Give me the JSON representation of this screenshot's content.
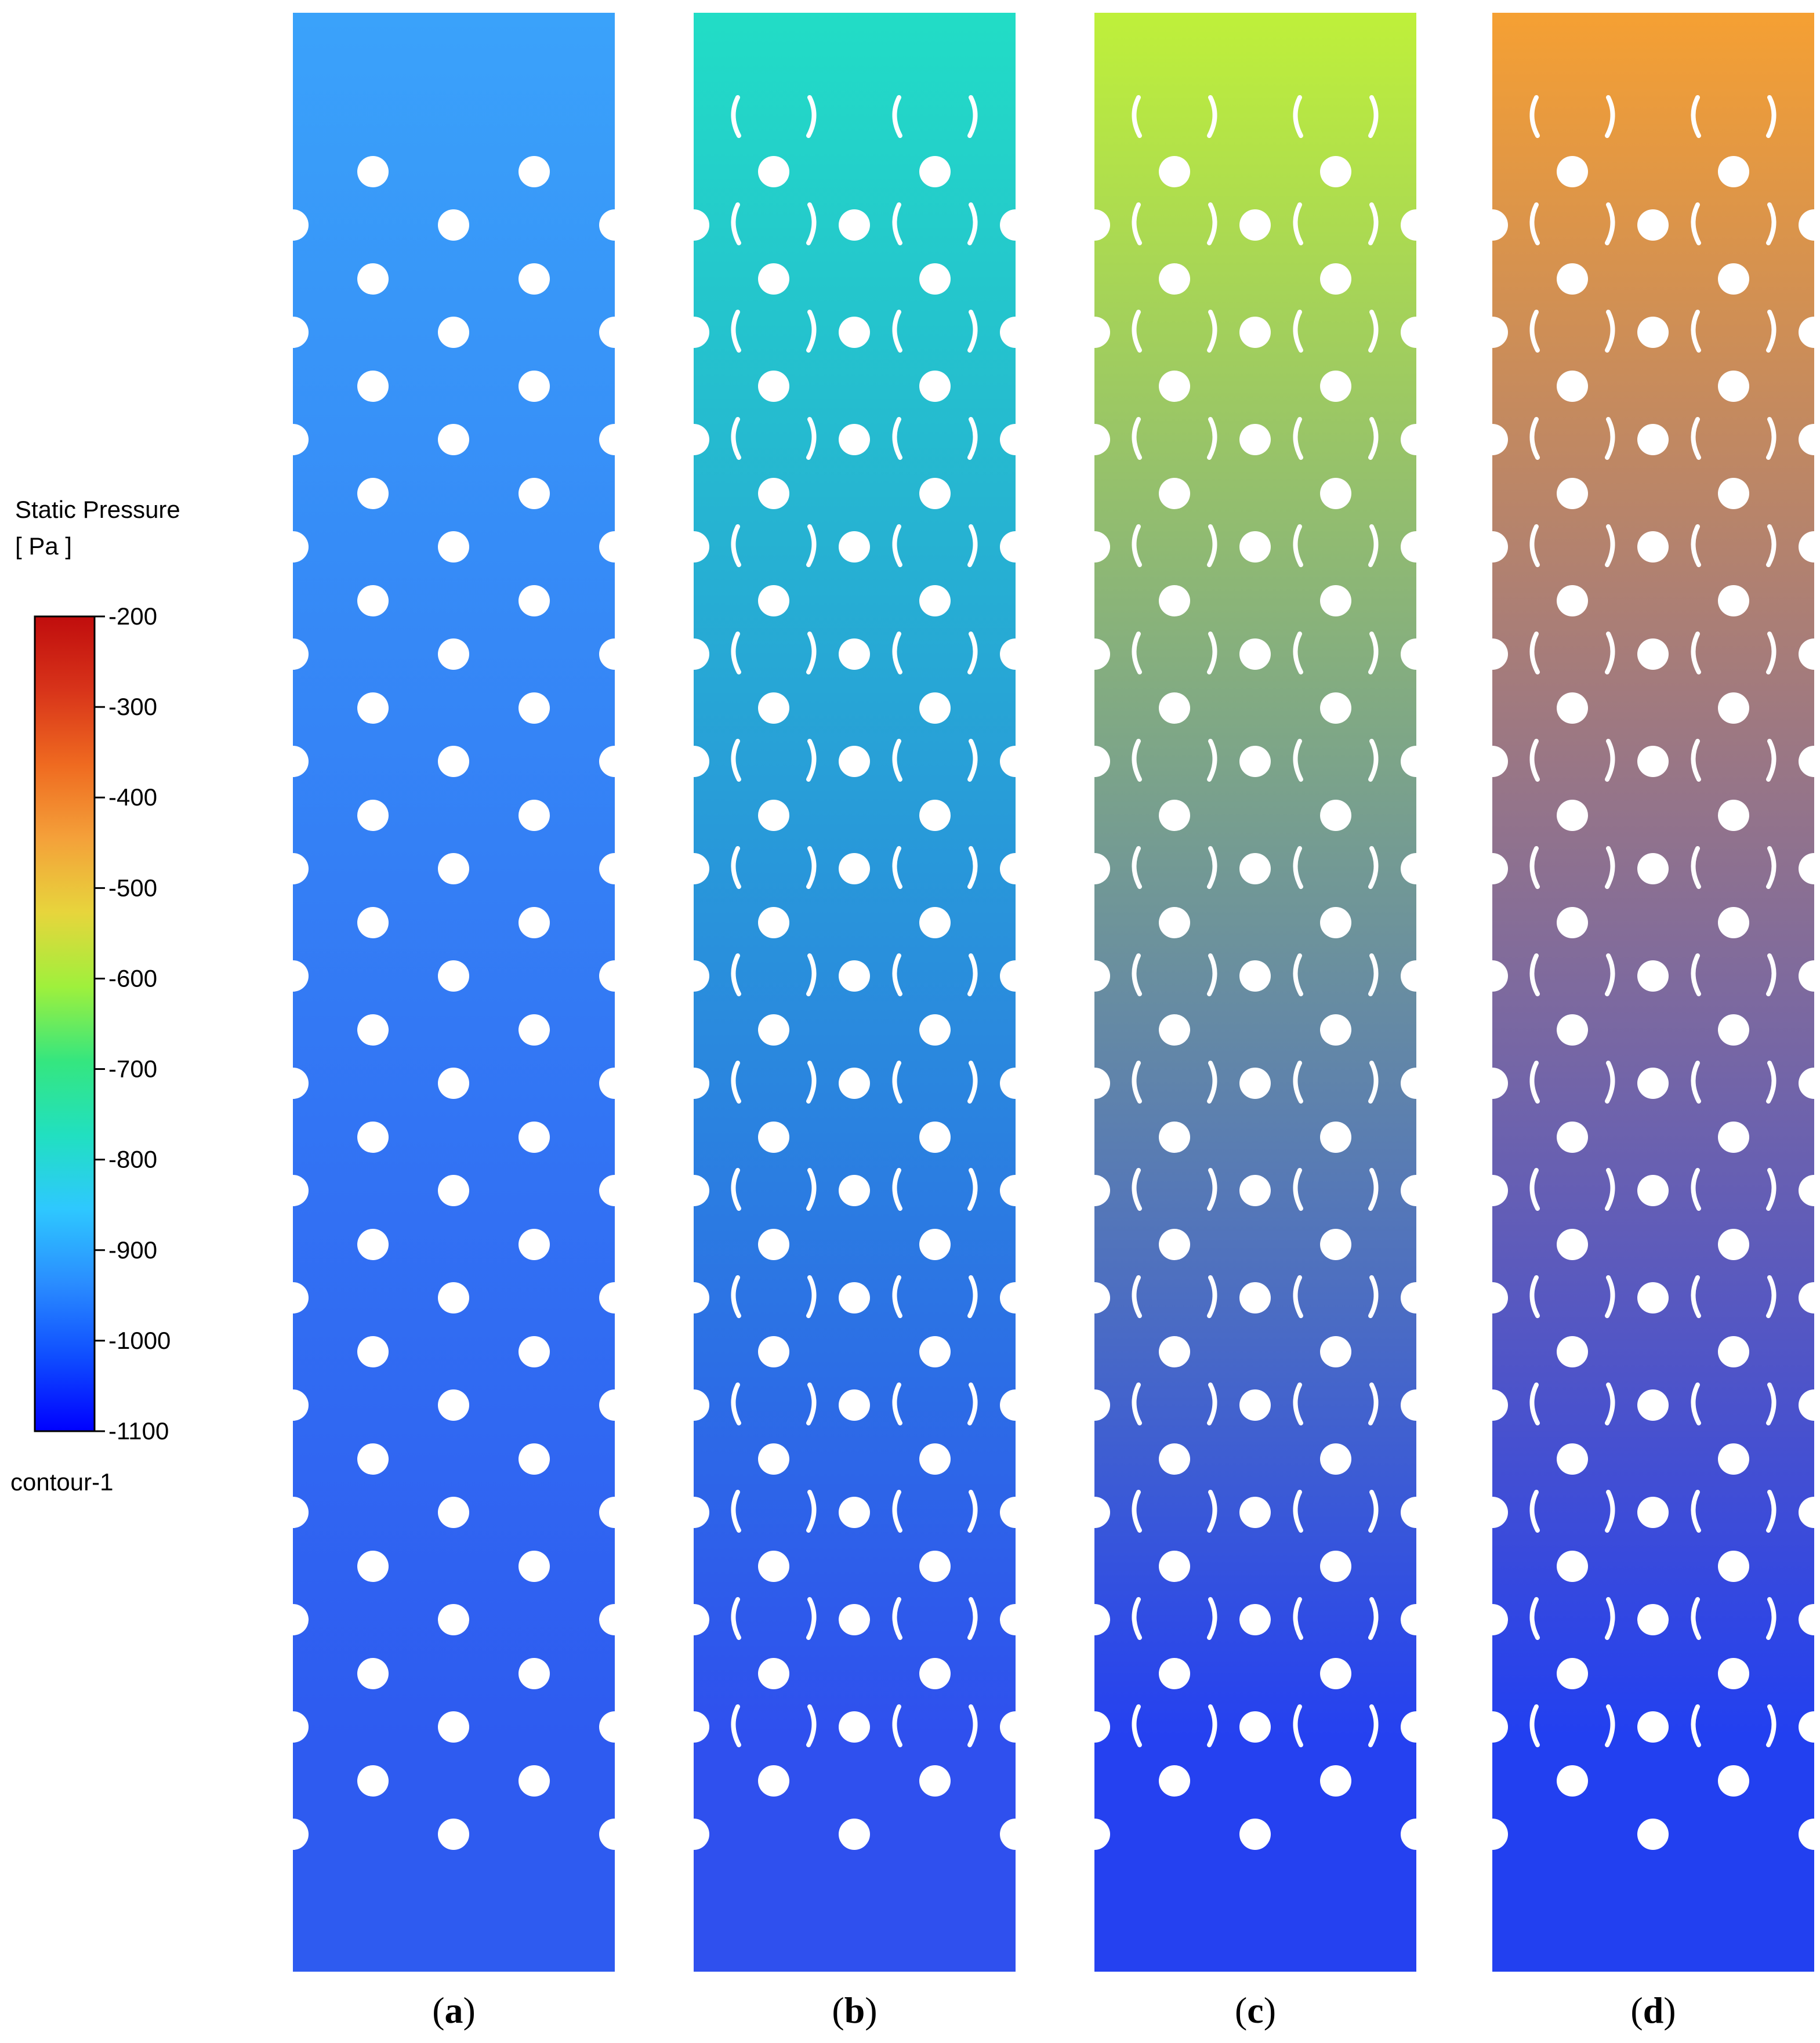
{
  "legend": {
    "title": "Static Pressure",
    "unit": "[ Pa ]",
    "ticks": [
      "-200",
      "-300",
      "-400",
      "-500",
      "-600",
      "-700",
      "-800",
      "-900",
      "-1000",
      "-1100"
    ],
    "tick_values": [
      -200,
      -300,
      -400,
      -500,
      -600,
      -700,
      -800,
      -900,
      -1000,
      -1100
    ],
    "range": [
      -1100,
      -200
    ],
    "contour_name": "contour-1",
    "colormap": [
      "#0000ff",
      "#0f4dff",
      "#2a8dff",
      "#2ec8ff",
      "#21e0c0",
      "#35e67f",
      "#9ff03c",
      "#e7d53c",
      "#f4a13a",
      "#ef6a20",
      "#d8341a",
      "#c00d0d"
    ]
  },
  "panels": [
    {
      "label": "a",
      "top_color": "#3aa2fa",
      "bottom_color": "#2e5bf0",
      "vanes": false
    },
    {
      "label": "b",
      "top_color": "#22ddc6",
      "bottom_color": "#2f50ee",
      "vanes": true
    },
    {
      "label": "c",
      "top_color": "#bff03a",
      "bottom_color": "#2541f0",
      "vanes": true
    },
    {
      "label": "d",
      "top_color": "#f5a033",
      "bottom_color": "#2240f0",
      "vanes": true
    }
  ]
}
